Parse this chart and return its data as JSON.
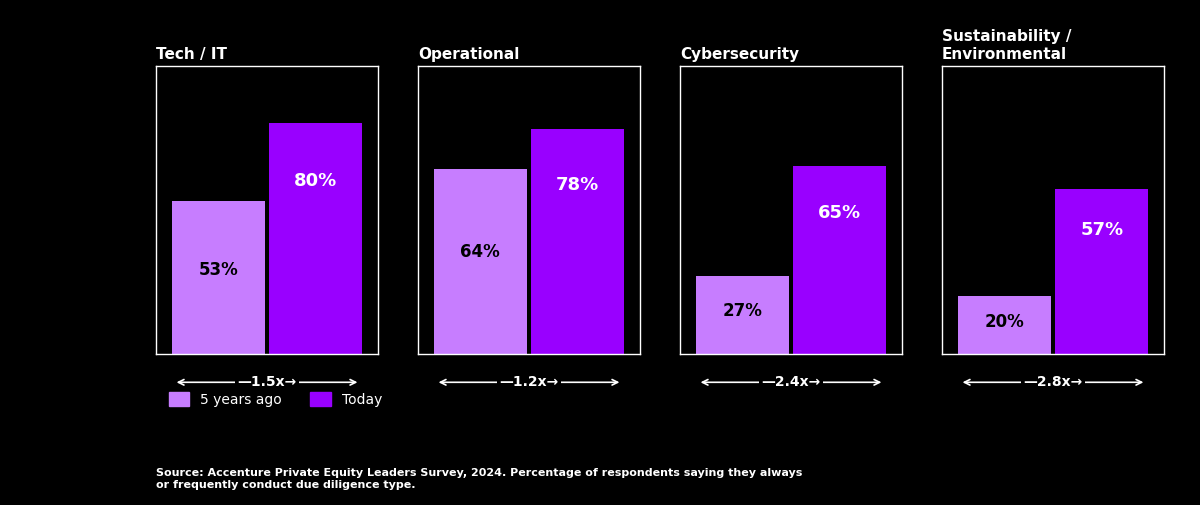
{
  "categories": [
    "Tech / IT",
    "Operational",
    "Cybersecurity",
    "Sustainability /\nEnvironmental"
  ],
  "values_past": [
    53,
    64,
    27,
    20
  ],
  "values_today": [
    80,
    78,
    65,
    57
  ],
  "multipliers": [
    "1.5x",
    "1.2x",
    "2.4x",
    "2.8x"
  ],
  "color_past": "#c77dff",
  "color_today": "#9900ff",
  "background_color": "#000000",
  "text_color_white": "#ffffff",
  "text_color_black": "#000000",
  "label_past_fontsize": 12,
  "label_today_fontsize": 13,
  "title_fontsize": 11,
  "multiplier_fontsize": 10,
  "legend_fontsize": 10,
  "source_text": "Source: Accenture Private Equity Leaders Survey, 2024. Percentage of respondents saying they always\nor frequently conduct due diligence type.",
  "ylim": [
    0,
    100
  ]
}
